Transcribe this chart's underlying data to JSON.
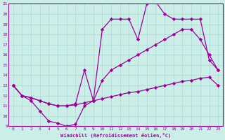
{
  "xlabel": "Windchill (Refroidissement éolien,°C)",
  "bg_color": "#cceee8",
  "line_color": "#990099",
  "grid_color": "#aad8d4",
  "xlim": [
    -0.5,
    23.5
  ],
  "ylim": [
    9,
    21
  ],
  "xticks": [
    0,
    1,
    2,
    3,
    4,
    5,
    6,
    7,
    8,
    9,
    10,
    11,
    12,
    13,
    14,
    15,
    16,
    17,
    18,
    19,
    20,
    21,
    22,
    23
  ],
  "yticks": [
    9,
    10,
    11,
    12,
    13,
    14,
    15,
    16,
    17,
    18,
    19,
    20,
    21
  ],
  "line1_x": [
    0,
    1,
    2,
    3,
    4,
    5,
    6,
    7,
    8,
    9,
    10,
    11,
    12,
    13,
    14,
    15,
    16,
    17,
    18,
    19,
    20,
    21,
    22,
    23
  ],
  "line1_y": [
    13,
    12,
    11.8,
    11.5,
    11.2,
    11.0,
    11.0,
    11.1,
    11.3,
    11.5,
    11.7,
    11.9,
    12.1,
    12.3,
    12.4,
    12.6,
    12.8,
    13.0,
    13.2,
    13.4,
    13.5,
    13.7,
    13.8,
    13.0
  ],
  "line2_x": [
    0,
    1,
    2,
    3,
    4,
    5,
    6,
    7,
    8,
    9,
    10,
    11,
    12,
    13,
    14,
    15,
    16,
    17,
    18,
    19,
    20,
    21,
    22,
    23
  ],
  "line2_y": [
    13,
    12,
    11.8,
    11.5,
    11.2,
    11.0,
    11.0,
    11.2,
    14.5,
    11.5,
    13.5,
    14.5,
    15.0,
    15.5,
    16.0,
    16.5,
    17.0,
    17.5,
    18.0,
    18.5,
    18.5,
    17.5,
    16.0,
    14.5
  ],
  "line3_x": [
    0,
    1,
    2,
    3,
    4,
    5,
    6,
    7,
    8,
    9,
    10,
    11,
    12,
    13,
    14,
    15,
    16,
    17,
    18,
    19,
    20,
    21,
    22,
    23
  ],
  "line3_y": [
    13,
    12,
    11.5,
    10.5,
    9.5,
    9.3,
    9.0,
    9.2,
    11.0,
    11.5,
    18.5,
    19.5,
    19.5,
    19.5,
    17.5,
    21.0,
    21.2,
    20.0,
    19.5,
    19.5,
    19.5,
    19.5,
    15.5,
    14.5
  ]
}
